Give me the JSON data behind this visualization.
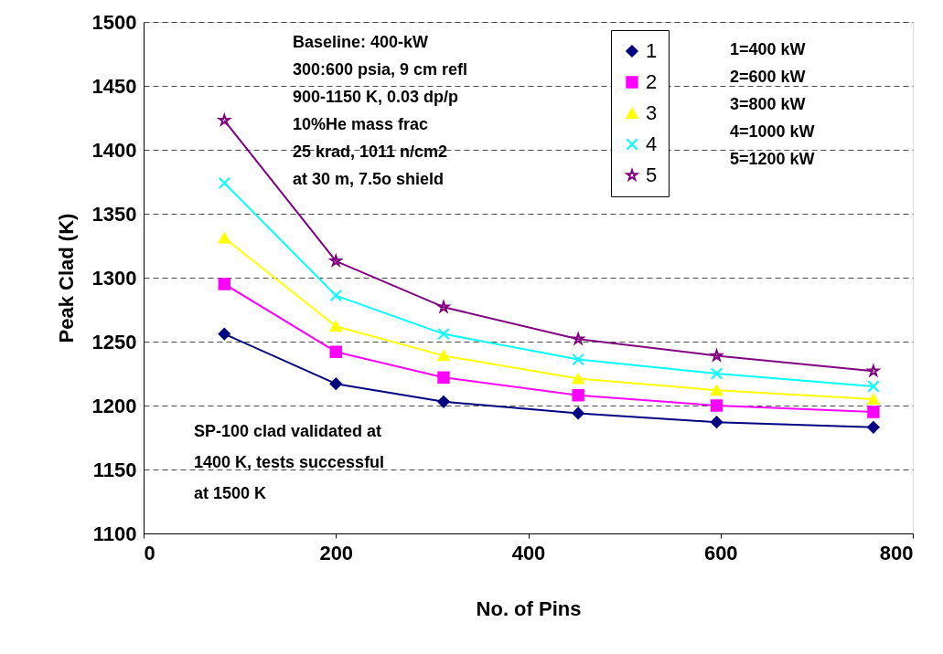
{
  "chart_data": {
    "type": "line",
    "xlabel": "No. of Pins",
    "ylabel": "Peak Clad (K)",
    "x": [
      84,
      200,
      312,
      452,
      596,
      759
    ],
    "xlim": [
      0,
      800
    ],
    "xticks": [
      0,
      200,
      400,
      600,
      800
    ],
    "ylim": [
      1100,
      1500
    ],
    "yticks": [
      1100,
      1150,
      1200,
      1250,
      1300,
      1350,
      1400,
      1450,
      1500
    ],
    "grid": "y",
    "legend": "top right",
    "series": [
      {
        "name": "1",
        "color": "#000080",
        "marker": "diamond",
        "values": [
          1256,
          1217,
          1203,
          1194,
          1187,
          1183
        ]
      },
      {
        "name": "2",
        "color": "#ff00ff",
        "marker": "square",
        "values": [
          1295,
          1242,
          1222,
          1208,
          1200,
          1195
        ]
      },
      {
        "name": "3",
        "color": "#ffff00",
        "marker": "triangle",
        "values": [
          1331,
          1262,
          1239,
          1221,
          1212,
          1205
        ]
      },
      {
        "name": "4",
        "color": "#00ffff",
        "marker": "cross",
        "values": [
          1374,
          1286,
          1256,
          1236,
          1225,
          1215
        ]
      },
      {
        "name": "5",
        "color": "#800080",
        "marker": "star",
        "values": [
          1423,
          1313,
          1277,
          1252,
          1239,
          1227
        ]
      }
    ],
    "annotations": [
      "Baseline:  400-kW\n300:600 psia, 9 cm refl\n900-1150 K, 0.03 dp/p\n10%He mass frac\n25 krad, 1011 n/cm2\nat 30 m, 7.5o shield",
      "1=400 kW\n2=600 kW\n3=800 kW\n4=1000 kW\n5=1200 kW",
      "SP-100 clad validated at\n1400 K, tests successful\nat 1500 K"
    ]
  }
}
